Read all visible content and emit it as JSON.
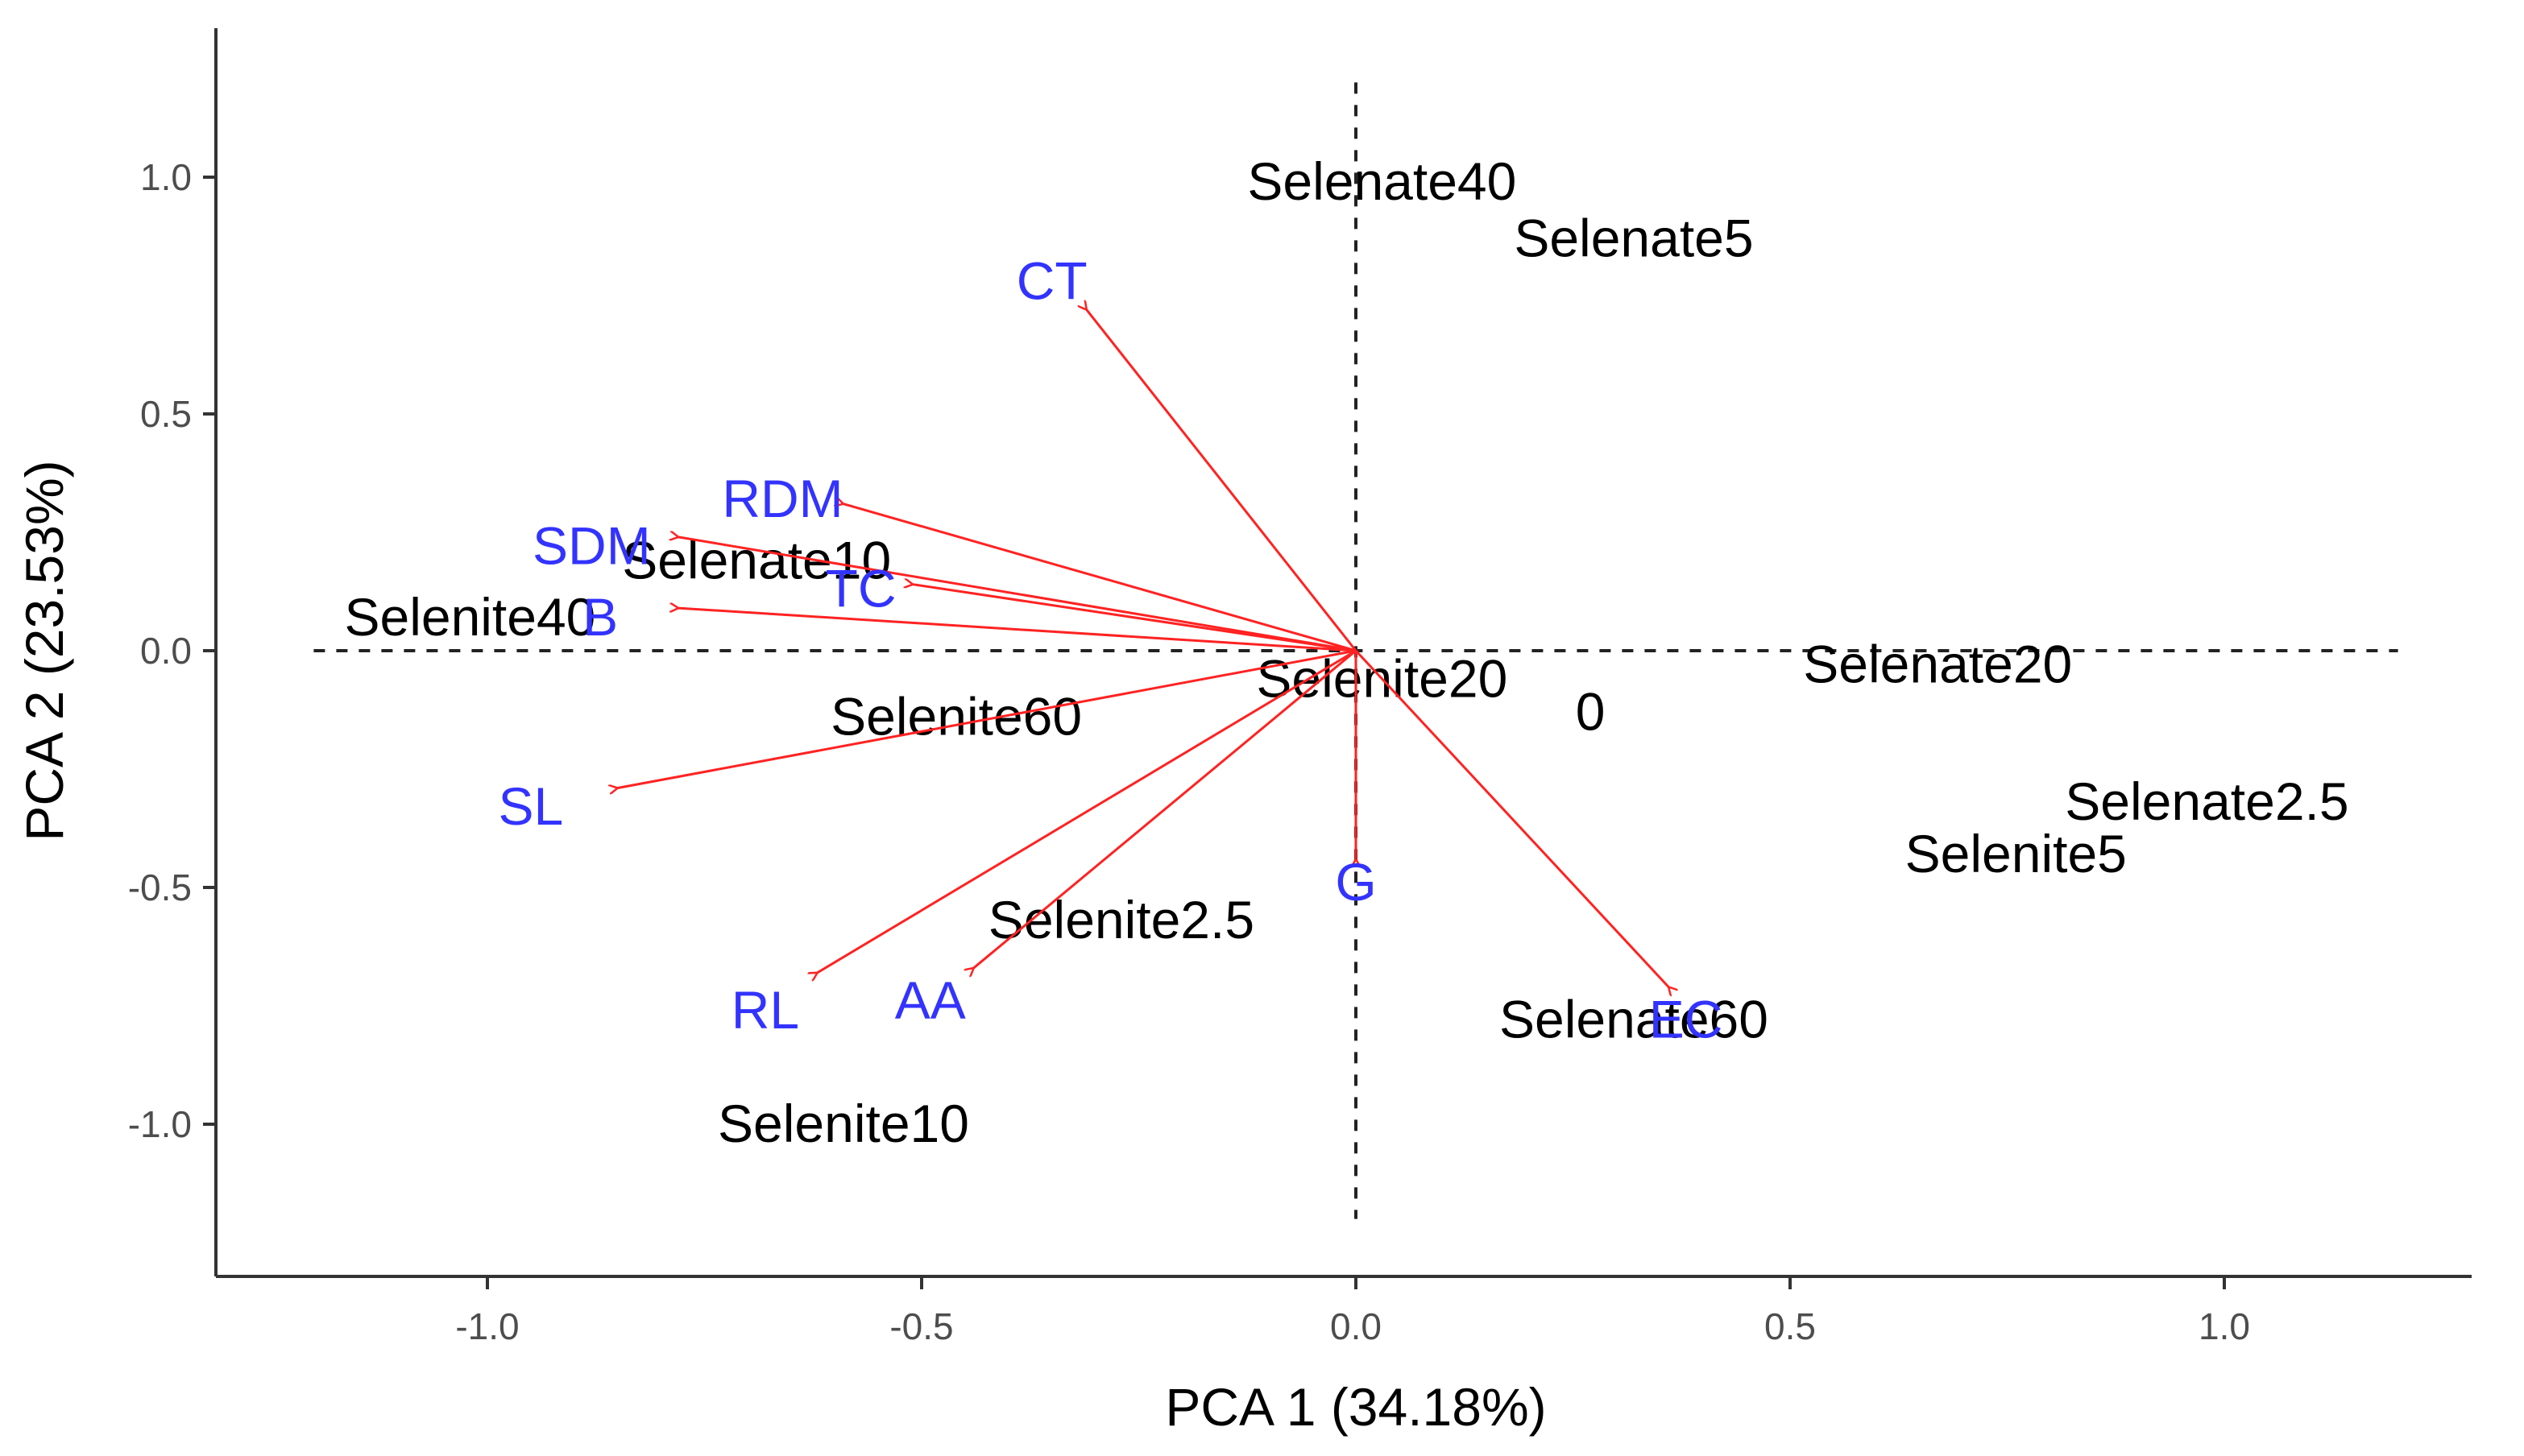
{
  "chart_data": {
    "type": "scatter",
    "subtype": "pca-biplot",
    "title": "",
    "xlabel": "PCA 1 (34.18%)",
    "ylabel": "PCA 2 (23.53%)",
    "xlim": [
      -1.3,
      1.3
    ],
    "ylim": [
      -1.3,
      1.3
    ],
    "x_ticks": [
      {
        "value": -1.0,
        "label": "-1.0"
      },
      {
        "value": -0.5,
        "label": "-0.5"
      },
      {
        "value": 0.0,
        "label": "0.0"
      },
      {
        "value": 0.5,
        "label": "0.5"
      },
      {
        "value": 1.0,
        "label": "1.0"
      }
    ],
    "y_ticks": [
      {
        "value": 1.0,
        "label": "1.0"
      },
      {
        "value": 0.5,
        "label": "0.5"
      },
      {
        "value": 0.0,
        "label": "0.0"
      },
      {
        "value": -0.5,
        "label": "-0.5"
      },
      {
        "value": -1.0,
        "label": "-1.0"
      }
    ],
    "reference_lines": {
      "horizontal": {
        "y": 0.0,
        "x_range": [
          -1.2,
          1.2
        ]
      },
      "vertical": {
        "x": 0.0,
        "y_range": [
          -1.2,
          1.2
        ]
      }
    },
    "grid": false,
    "colors": {
      "observation_text": "#000000",
      "variable_text": "#3333ff",
      "arrow": "#ff2222",
      "axis": "#333333",
      "reference_line": "#222222"
    },
    "observations": [
      {
        "label": "Selenate40",
        "x": 0.03,
        "y": 0.99
      },
      {
        "label": "Selenate5",
        "x": 0.32,
        "y": 0.87
      },
      {
        "label": "Selenate10",
        "x": -0.69,
        "y": 0.19
      },
      {
        "label": "Selenite40",
        "x": -1.02,
        "y": 0.07
      },
      {
        "label": "Selenite20",
        "x": 0.03,
        "y": -0.06
      },
      {
        "label": "Selenate20",
        "x": 0.67,
        "y": -0.03
      },
      {
        "label": "0",
        "x": 0.27,
        "y": -0.13
      },
      {
        "label": "Selenite60",
        "x": -0.46,
        "y": -0.14
      },
      {
        "label": "Selenate2.5",
        "x": 0.98,
        "y": -0.32
      },
      {
        "label": "Selenite5",
        "x": 0.76,
        "y": -0.43
      },
      {
        "label": "Selenite2.5",
        "x": -0.27,
        "y": -0.57
      },
      {
        "label": "Selenate60",
        "x": 0.32,
        "y": -0.78
      },
      {
        "label": "Selenite10",
        "x": -0.59,
        "y": -1.0
      }
    ],
    "variables": [
      {
        "label": "CT",
        "x": -0.31,
        "y": 0.72,
        "label_x": -0.35,
        "label_y": 0.78
      },
      {
        "label": "RDM",
        "x": -0.59,
        "y": 0.31,
        "label_x": -0.66,
        "label_y": 0.32
      },
      {
        "label": "SDM",
        "x": -0.78,
        "y": 0.24,
        "label_x": -0.88,
        "label_y": 0.22
      },
      {
        "label": "TC",
        "x": -0.51,
        "y": 0.14,
        "label_x": -0.57,
        "label_y": 0.13
      },
      {
        "label": "B",
        "x": -0.78,
        "y": 0.09,
        "label_x": -0.87,
        "label_y": 0.07
      },
      {
        "label": "SL",
        "x": -0.85,
        "y": -0.29,
        "label_x": -0.95,
        "label_y": -0.33
      },
      {
        "label": "RL",
        "x": -0.62,
        "y": -0.68,
        "label_x": -0.68,
        "label_y": -0.76
      },
      {
        "label": "AA",
        "x": -0.44,
        "y": -0.67,
        "label_x": -0.49,
        "label_y": -0.74
      },
      {
        "label": "G",
        "x": 0.0,
        "y": -0.44,
        "label_x": 0.0,
        "label_y": -0.49
      },
      {
        "label": "EC",
        "x": 0.36,
        "y": -0.71,
        "label_x": 0.38,
        "label_y": -0.78
      }
    ]
  }
}
